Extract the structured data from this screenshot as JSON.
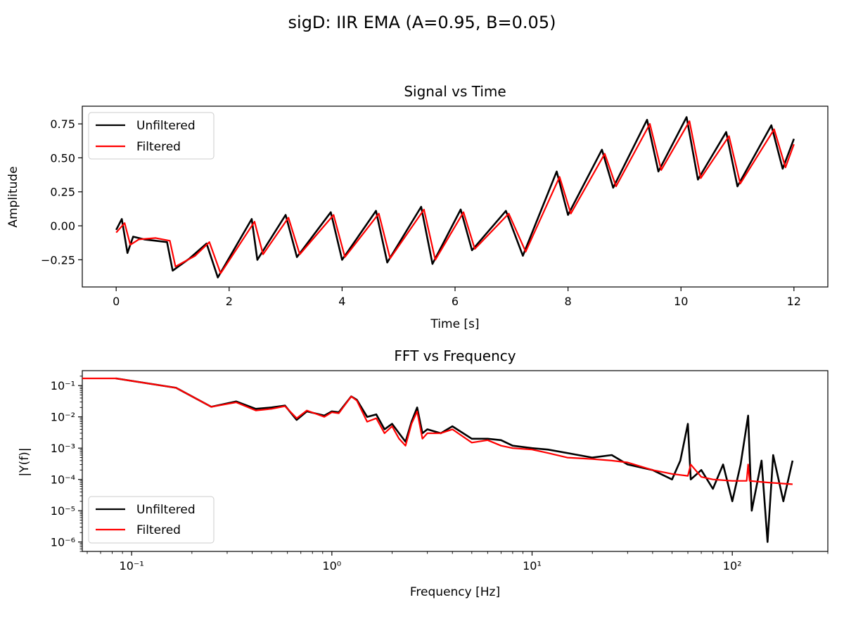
{
  "figure": {
    "suptitle": "sigD: IIR EMA (A=0.95, B=0.05)"
  },
  "chart_data": [
    {
      "type": "line",
      "title": "Signal vs Time",
      "xlabel": "Time [s]",
      "ylabel": "Amplitude",
      "xlim": [
        -0.6,
        12.6
      ],
      "ylim": [
        -0.45,
        0.88
      ],
      "xscale": "linear",
      "yscale": "linear",
      "xticks": [
        0,
        2,
        4,
        6,
        8,
        10,
        12
      ],
      "xtick_labels": [
        "0",
        "2",
        "4",
        "6",
        "8",
        "10",
        "12"
      ],
      "yticks": [
        -0.25,
        0.0,
        0.25,
        0.5,
        0.75
      ],
      "ytick_labels": [
        "−0.25",
        "0.00",
        "0.25",
        "0.50",
        "0.75"
      ],
      "grid": false,
      "legend": {
        "position": "upper-left"
      },
      "series": [
        {
          "name": "Unfiltered",
          "color": "#000000",
          "x": [
            0,
            0.1,
            0.2,
            0.3,
            0.5,
            0.9,
            1.0,
            1.3,
            1.6,
            1.8,
            2.4,
            2.5,
            3.0,
            3.2,
            3.8,
            4.0,
            4.6,
            4.8,
            5.4,
            5.6,
            6.1,
            6.3,
            6.9,
            7.2,
            7.8,
            8.0,
            8.6,
            8.8,
            9.4,
            9.6,
            10.1,
            10.3,
            10.8,
            11.0,
            11.6,
            11.8,
            12.0
          ],
          "y": [
            -0.03,
            0.05,
            -0.2,
            -0.08,
            -0.1,
            -0.12,
            -0.33,
            -0.24,
            -0.13,
            -0.38,
            0.05,
            -0.25,
            0.08,
            -0.23,
            0.1,
            -0.25,
            0.11,
            -0.27,
            0.14,
            -0.28,
            0.12,
            -0.18,
            0.11,
            -0.22,
            0.4,
            0.08,
            0.56,
            0.28,
            0.78,
            0.4,
            0.8,
            0.34,
            0.69,
            0.29,
            0.74,
            0.42,
            0.64
          ]
        },
        {
          "name": "Filtered",
          "color": "#ff0000",
          "x": [
            0,
            0.15,
            0.25,
            0.4,
            0.7,
            0.95,
            1.05,
            1.4,
            1.65,
            1.85,
            2.45,
            2.6,
            3.05,
            3.25,
            3.85,
            4.05,
            4.65,
            4.85,
            5.45,
            5.65,
            6.15,
            6.35,
            6.95,
            7.25,
            7.85,
            8.05,
            8.65,
            8.85,
            9.45,
            9.65,
            10.15,
            10.35,
            10.85,
            11.05,
            11.65,
            11.85,
            12.0
          ],
          "y": [
            -0.05,
            0.02,
            -0.14,
            -0.1,
            -0.09,
            -0.11,
            -0.3,
            -0.22,
            -0.12,
            -0.35,
            0.03,
            -0.21,
            0.06,
            -0.21,
            0.08,
            -0.23,
            0.09,
            -0.24,
            0.12,
            -0.25,
            0.1,
            -0.17,
            0.09,
            -0.19,
            0.36,
            0.09,
            0.53,
            0.29,
            0.75,
            0.41,
            0.77,
            0.35,
            0.66,
            0.31,
            0.71,
            0.43,
            0.6
          ]
        }
      ]
    },
    {
      "type": "line",
      "title": "FFT vs Frequency",
      "xlabel": "Frequency [Hz]",
      "ylabel": "|Y(f)|",
      "xlim": [
        0.0567,
        300
      ],
      "ylim": [
        5e-07,
        0.3
      ],
      "xscale": "log",
      "yscale": "log",
      "xticks": [
        0.1,
        1,
        10,
        100
      ],
      "xtick_labels": [
        "10⁻¹",
        "10⁰",
        "10¹",
        "10²"
      ],
      "yticks": [
        1e-06,
        1e-05,
        0.0001,
        0.001,
        0.01,
        0.1
      ],
      "ytick_labels": [
        "10⁻⁶",
        "10⁻⁵",
        "10⁻⁴",
        "10⁻³",
        "10⁻²",
        "10⁻¹"
      ],
      "grid": false,
      "legend": {
        "position": "lower-left"
      },
      "series": [
        {
          "name": "Unfiltered",
          "color": "#000000",
          "x": [
            0.0833,
            0.1667,
            0.25,
            0.333,
            0.417,
            0.5,
            0.583,
            0.667,
            0.75,
            0.917,
            1.0,
            1.083,
            1.25,
            1.333,
            1.5,
            1.667,
            1.833,
            2.0,
            2.167,
            2.333,
            2.5,
            2.667,
            2.833,
            3.0,
            3.5,
            4.0,
            5.0,
            6.0,
            7.0,
            8.0,
            10,
            12,
            15,
            20,
            25,
            30,
            40,
            50,
            55,
            60,
            62,
            70,
            80,
            90,
            100,
            110,
            120,
            125,
            140,
            150,
            160,
            180,
            200
          ],
          "y": [
            0.17,
            0.085,
            0.021,
            0.031,
            0.018,
            0.02,
            0.023,
            0.008,
            0.015,
            0.011,
            0.015,
            0.014,
            0.045,
            0.035,
            0.01,
            0.012,
            0.004,
            0.006,
            0.003,
            0.0016,
            0.007,
            0.02,
            0.003,
            0.004,
            0.003,
            0.005,
            0.002,
            0.002,
            0.0018,
            0.0012,
            0.001,
            0.0009,
            0.0007,
            0.0005,
            0.0006,
            0.0003,
            0.0002,
            0.0001,
            0.0004,
            0.006,
            0.0001,
            0.0002,
            5e-05,
            0.0003,
            2e-05,
            0.0003,
            0.011,
            1e-05,
            0.0004,
            1e-06,
            0.0006,
            2e-05,
            0.0004
          ]
        },
        {
          "name": "Filtered",
          "color": "#ff0000",
          "x": [
            0.0567,
            0.0833,
            0.1667,
            0.25,
            0.333,
            0.417,
            0.5,
            0.583,
            0.667,
            0.75,
            0.917,
            1.0,
            1.083,
            1.25,
            1.333,
            1.5,
            1.667,
            1.833,
            2.0,
            2.167,
            2.333,
            2.5,
            2.667,
            2.833,
            3.0,
            3.5,
            4.0,
            5.0,
            6.0,
            7.0,
            8.0,
            10,
            12,
            15,
            20,
            25,
            30,
            40,
            50,
            60,
            62,
            70,
            80,
            100,
            118,
            120,
            122,
            150,
            200
          ],
          "y": [
            0.17,
            0.17,
            0.085,
            0.021,
            0.029,
            0.016,
            0.018,
            0.022,
            0.009,
            0.016,
            0.01,
            0.014,
            0.013,
            0.045,
            0.033,
            0.007,
            0.009,
            0.003,
            0.005,
            0.002,
            0.0012,
            0.006,
            0.015,
            0.002,
            0.003,
            0.003,
            0.004,
            0.0015,
            0.0018,
            0.0012,
            0.001,
            0.0009,
            0.0007,
            0.0005,
            0.00045,
            0.0004,
            0.00035,
            0.0002,
            0.00015,
            0.00013,
            0.0003,
            0.00012,
            0.0001,
            9e-05,
            9e-05,
            0.0003,
            9e-05,
            8e-05,
            7e-05
          ]
        }
      ]
    }
  ]
}
